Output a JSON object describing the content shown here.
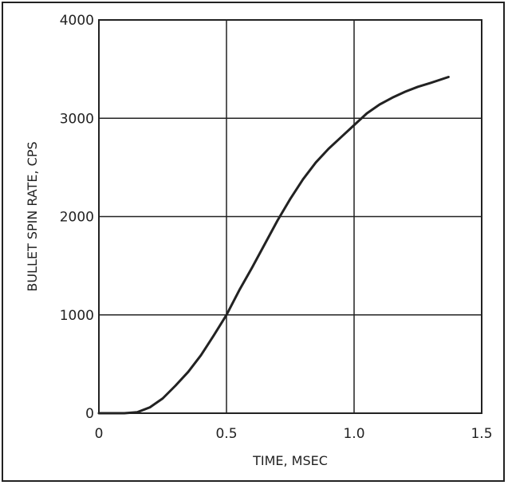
{
  "chart_data": {
    "type": "line",
    "title": "",
    "xlabel": "TIME, MSEC",
    "ylabel": "BULLET SPIN RATE, CPS",
    "xlim": [
      0,
      1.5
    ],
    "ylim": [
      0,
      4000
    ],
    "x_ticks": [
      "0",
      "0.5",
      "1.0",
      "1.5"
    ],
    "y_ticks": [
      "0",
      "1000",
      "2000",
      "3000",
      "4000"
    ],
    "grid": true,
    "legend": "none",
    "series": [
      {
        "x": [
          0,
          0.05,
          0.1,
          0.15,
          0.2,
          0.25,
          0.3,
          0.35,
          0.4,
          0.45,
          0.5,
          0.55,
          0.6,
          0.65,
          0.7,
          0.75,
          0.8,
          0.85,
          0.9,
          0.95,
          1.0,
          1.05,
          1.1,
          1.15,
          1.2,
          1.25,
          1.3,
          1.37
        ],
        "values": [
          0,
          0,
          0,
          10,
          60,
          150,
          280,
          420,
          590,
          790,
          1000,
          1250,
          1480,
          1720,
          1960,
          2180,
          2380,
          2550,
          2690,
          2810,
          2930,
          3050,
          3140,
          3210,
          3270,
          3320,
          3360,
          3420
        ]
      }
    ],
    "colors": {
      "line": "#222222",
      "grid": "#222222",
      "axis": "#222222"
    }
  }
}
